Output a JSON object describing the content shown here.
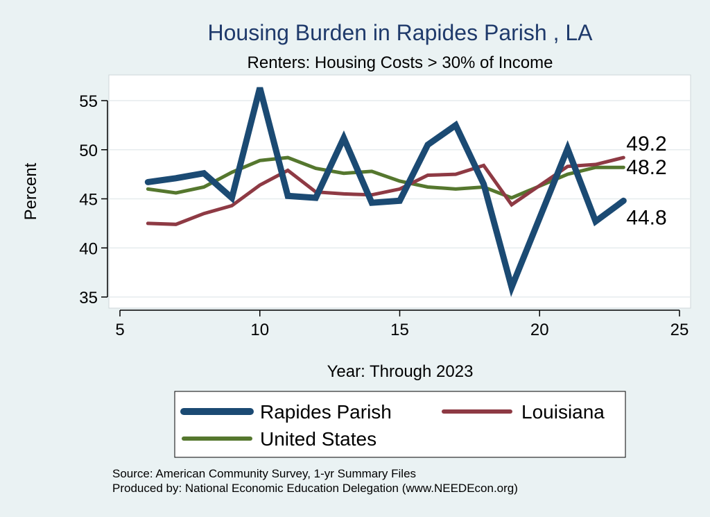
{
  "chart_data": {
    "type": "line",
    "title": "Housing Burden in Rapides Parish , LA",
    "subtitle": "Renters: Housing Costs > 30% of Income",
    "xlabel": "Year: Through 2023",
    "ylabel": "Percent",
    "xlim": [
      5,
      25
    ],
    "ylim": [
      34,
      57
    ],
    "xticks": [
      5,
      10,
      15,
      20,
      25
    ],
    "yticks": [
      35,
      40,
      45,
      50,
      55
    ],
    "grid": true,
    "legend_position": "bottom",
    "series": [
      {
        "name": "Rapides Parish",
        "color": "#1B4A73",
        "x": [
          6,
          7,
          8,
          9,
          10,
          11,
          12,
          13,
          14,
          15,
          16,
          17,
          18,
          19,
          21,
          22,
          23
        ],
        "values": [
          46.7,
          47.1,
          47.6,
          45.1,
          56.3,
          45.3,
          45.1,
          51.2,
          44.6,
          44.8,
          50.5,
          52.5,
          46.5,
          36.0,
          50.1,
          42.7,
          44.8
        ],
        "end_label": "44.8"
      },
      {
        "name": "Louisiana",
        "color": "#8E3A44",
        "x": [
          6,
          7,
          8,
          9,
          10,
          11,
          12,
          13,
          14,
          15,
          16,
          17,
          18,
          19,
          21,
          22,
          23
        ],
        "values": [
          42.5,
          42.4,
          43.5,
          44.3,
          46.4,
          47.9,
          45.7,
          45.5,
          45.4,
          46.0,
          47.4,
          47.5,
          48.4,
          44.4,
          48.3,
          48.5,
          49.2
        ],
        "end_label": "49.2"
      },
      {
        "name": "United States",
        "color": "#55772E",
        "x": [
          6,
          7,
          8,
          9,
          10,
          11,
          12,
          13,
          14,
          15,
          16,
          17,
          18,
          19,
          21,
          22,
          23
        ],
        "values": [
          46.0,
          45.6,
          46.2,
          47.7,
          48.9,
          49.2,
          48.1,
          47.6,
          47.8,
          46.8,
          46.2,
          46.0,
          46.2,
          45.1,
          47.5,
          48.2,
          48.2
        ],
        "end_label": "48.2"
      }
    ],
    "source_lines": [
      "Source: American Community Survey, 1-yr Summary Files",
      "Produced by: National Economic Education Delegation (www.NEEDEcon.org)"
    ]
  }
}
